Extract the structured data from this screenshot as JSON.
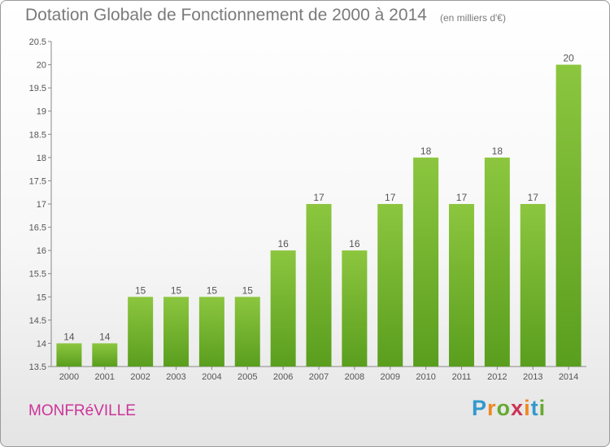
{
  "chart_data": {
    "type": "bar",
    "title": "Dotation Globale de Fonctionnement de 2000 à 2014",
    "subtitle": "(en milliers d'€)",
    "categories": [
      "2000",
      "2001",
      "2002",
      "2003",
      "2004",
      "2005",
      "2006",
      "2007",
      "2008",
      "2009",
      "2010",
      "2011",
      "2012",
      "2013",
      "2014"
    ],
    "values": [
      14,
      14,
      15,
      15,
      15,
      15,
      16,
      17,
      16,
      17,
      18,
      17,
      18,
      17,
      20
    ],
    "value_labels": [
      "14",
      "14",
      "15",
      "15",
      "15",
      "15",
      "16",
      "17",
      "16",
      "17",
      "18",
      "17",
      "18",
      "17",
      "20"
    ],
    "ylim": [
      13.5,
      20.5
    ],
    "yticks": [
      13.5,
      14,
      14.5,
      15,
      15.5,
      16,
      16.5,
      17,
      17.5,
      18,
      18.5,
      19,
      19.5,
      20,
      20.5
    ],
    "ytick_labels": [
      "13.5",
      "14",
      "14.5",
      "15",
      "15.5",
      "16",
      "16.5",
      "17",
      "17.5",
      "18",
      "18.5",
      "19",
      "19.5",
      "20",
      "20.5"
    ],
    "xlabel": "",
    "ylabel": "",
    "grid": false,
    "legend": "none",
    "bar_color": "#8cc63f",
    "bar_color_dark": "#5a9e1e"
  },
  "footer": {
    "town_name": "MONFRéVILLE",
    "town_color": "#cc3399",
    "logo_letters": [
      "P",
      "r",
      "o",
      "x",
      "i",
      "t",
      "i"
    ],
    "logo_colors": [
      "#3399cc",
      "#ee8822",
      "#66aa33",
      "#cc3355",
      "#ee8822",
      "#3399cc",
      "#66aa33"
    ]
  }
}
